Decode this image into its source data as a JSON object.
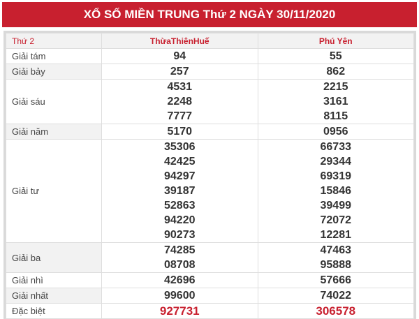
{
  "title": "XỔ SỐ MIỀN TRUNG Thứ 2 NGÀY 30/11/2020",
  "header": {
    "day": "Thứ 2",
    "provinces": [
      "ThừaThiênHuế",
      "Phú Yên"
    ]
  },
  "rows": [
    {
      "label": "Giải tám",
      "values": [
        [
          "94"
        ],
        [
          "55"
        ]
      ]
    },
    {
      "label": "Giải bảy",
      "values": [
        [
          "257"
        ],
        [
          "862"
        ]
      ]
    },
    {
      "label": "Giải sáu",
      "values": [
        [
          "4531",
          "2248",
          "7777"
        ],
        [
          "2215",
          "3161",
          "8115"
        ]
      ]
    },
    {
      "label": "Giải năm",
      "values": [
        [
          "5170"
        ],
        [
          "0956"
        ]
      ]
    },
    {
      "label": "Giải tư",
      "values": [
        [
          "35306",
          "42425",
          "94297",
          "39187",
          "52863",
          "94220",
          "90273"
        ],
        [
          "66733",
          "29344",
          "69319",
          "15846",
          "39499",
          "72072",
          "12281"
        ]
      ]
    },
    {
      "label": "Giải ba",
      "values": [
        [
          "74285",
          "08708"
        ],
        [
          "47463",
          "95888"
        ]
      ]
    },
    {
      "label": "Giải nhì",
      "values": [
        [
          "42696"
        ],
        [
          "57666"
        ]
      ]
    },
    {
      "label": "Giải nhất",
      "values": [
        [
          "99600"
        ],
        [
          "74022"
        ]
      ]
    },
    {
      "label": "Đặc biệt",
      "values": [
        [
          "927731"
        ],
        [
          "306578"
        ]
      ]
    }
  ],
  "colors": {
    "brand": "#c8202f",
    "special": "#c8202f"
  }
}
